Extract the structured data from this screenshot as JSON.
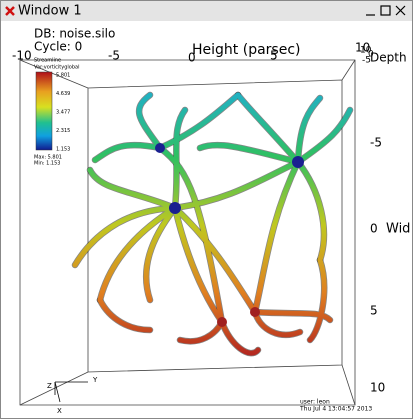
{
  "window": {
    "title": "Window 1"
  },
  "info": {
    "database": "DB: noise.silo",
    "cycle": "Cycle: 0"
  },
  "legend": {
    "plot": "Streamline",
    "variable": "Var:vorticityglobal",
    "labels": [
      "5.801",
      "4.639",
      "3.477",
      "2.315",
      "1.153"
    ],
    "max": "Max: 5.801",
    "min": "Min: 1.153"
  },
  "axes": {
    "x_title": "Height (parsec)",
    "x_ticks": [
      "-10",
      "-5",
      "0",
      "5",
      "10"
    ],
    "y_title": "Wid",
    "y_ticks": [
      "-5",
      "0",
      "5",
      "10"
    ],
    "z_title": "Depth",
    "z_ticks": [
      "10",
      "0",
      "-5"
    ]
  },
  "triad": [
    "Z",
    "Y",
    "X"
  ],
  "footer": {
    "user": "user: leon",
    "date": "Thu Jul  4 13:04:57 2013"
  }
}
